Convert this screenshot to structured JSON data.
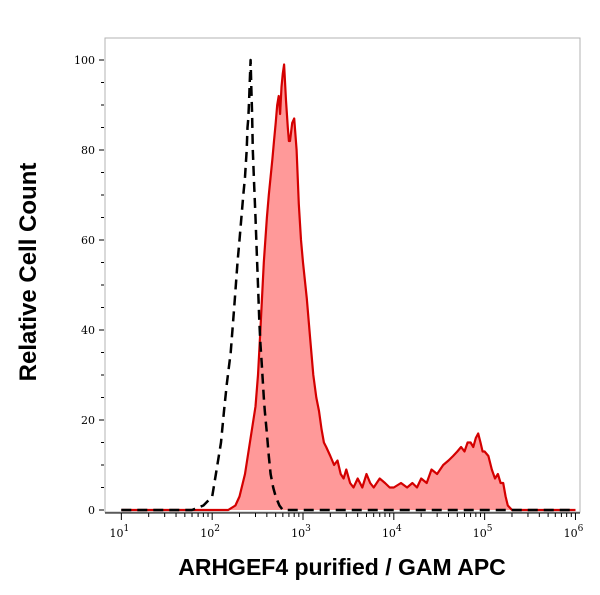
{
  "chart_data": {
    "type": "area",
    "title": "",
    "xlabel": "ARHGEF4 purified / GAM APC",
    "ylabel": "Relative Cell Count",
    "x_scale": "log",
    "xlim": [
      10,
      1000000
    ],
    "ylim": [
      0,
      100
    ],
    "grid": false,
    "legend": "none",
    "y_ticks": [
      0,
      20,
      40,
      60,
      80,
      100
    ],
    "y_tick_labels": [
      "0",
      "20",
      "40",
      "60",
      "80",
      "100"
    ],
    "x_ticks": [
      10,
      100,
      1000,
      10000,
      100000,
      1000000
    ],
    "x_tick_labels": [
      {
        "base": "10",
        "exp": "1"
      },
      {
        "base": "10",
        "exp": "2"
      },
      {
        "base": "10",
        "exp": "3"
      },
      {
        "base": "10",
        "exp": "4"
      },
      {
        "base": "10",
        "exp": "5"
      },
      {
        "base": "10",
        "exp": "6"
      }
    ],
    "series": [
      {
        "style": "filled",
        "color": "#d40000",
        "fill": "#ff9999",
        "x": [
          10,
          30,
          60,
          90,
          120,
          150,
          180,
          200,
          230,
          260,
          300,
          320,
          340,
          370,
          400,
          420,
          440,
          460,
          480,
          500,
          520,
          540,
          560,
          580,
          600,
          620,
          650,
          680,
          700,
          720,
          760,
          800,
          850,
          900,
          950,
          1000,
          1100,
          1200,
          1300,
          1400,
          1500,
          1600,
          1700,
          1800,
          2000,
          2200,
          2400,
          2600,
          2800,
          3000,
          3300,
          3600,
          4000,
          4500,
          5000,
          5500,
          6000,
          7000,
          8000,
          9000,
          10000,
          12000,
          14000,
          16000,
          18000,
          20000,
          23000,
          26000,
          30000,
          35000,
          40000,
          45000,
          50000,
          55000,
          60000,
          65000,
          70000,
          75000,
          80000,
          85000,
          90000,
          95000,
          100000,
          110000,
          120000,
          130000,
          140000,
          150000,
          160000,
          170000,
          180000,
          200000,
          300000,
          1000000
        ],
        "y": [
          0,
          0,
          0,
          0,
          0,
          0,
          1,
          3,
          8,
          15,
          23,
          30,
          40,
          55,
          65,
          70,
          74,
          78,
          82,
          86,
          90,
          92,
          88,
          94,
          97,
          99,
          91,
          85,
          82,
          82,
          86,
          87,
          80,
          68,
          60,
          55,
          47,
          38,
          30,
          25,
          22,
          18,
          15,
          14,
          12,
          10,
          11,
          8,
          7,
          9,
          6,
          5,
          7,
          5,
          8,
          6,
          5,
          7,
          6,
          5,
          5,
          6,
          5,
          6,
          5,
          7,
          6,
          9,
          8,
          10,
          11,
          12,
          13,
          14,
          13,
          15,
          15,
          14,
          16,
          17,
          15,
          13,
          13,
          12,
          9,
          7,
          8,
          6,
          6,
          3,
          1,
          0,
          0,
          0
        ]
      },
      {
        "style": "dashed",
        "color": "#000000",
        "x": [
          10,
          40,
          60,
          80,
          100,
          110,
          125,
          135,
          145,
          160,
          175,
          190,
          200,
          210,
          220,
          230,
          240,
          245,
          250,
          255,
          260,
          265,
          270,
          275,
          280,
          290,
          300,
          310,
          320,
          330,
          340,
          350,
          360,
          370,
          380,
          400,
          420,
          440,
          470,
          500,
          550,
          600,
          700,
          800,
          900,
          1000,
          1000000
        ],
        "y": [
          0,
          0,
          0,
          1,
          3,
          8,
          15,
          22,
          28,
          35,
          45,
          55,
          60,
          65,
          70,
          74,
          80,
          85,
          87,
          91,
          96,
          100,
          94,
          88,
          80,
          72,
          65,
          57,
          50,
          42,
          37,
          33,
          29,
          25,
          22,
          17,
          12,
          8,
          5,
          3,
          1,
          0,
          0,
          0,
          0,
          0,
          0
        ]
      }
    ]
  }
}
